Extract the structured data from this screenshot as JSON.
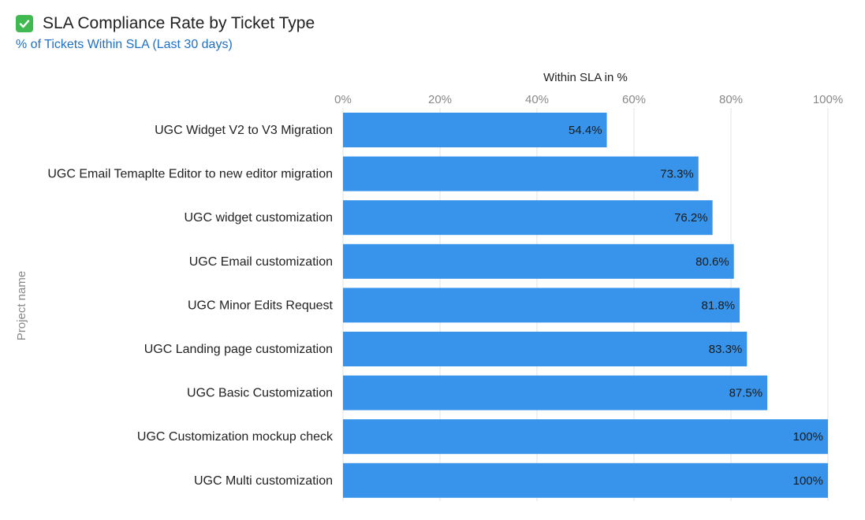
{
  "header": {
    "icon": "check-mark-icon",
    "title": "SLA Compliance Rate by Ticket Type",
    "subtitle": "% of Tickets Within SLA (Last 30 days)"
  },
  "colors": {
    "bar": "#3794ea",
    "title": "#222222",
    "subtitle": "#1f6fc5",
    "icon": "#3fb950"
  },
  "chart_data": {
    "type": "bar",
    "orientation": "horizontal",
    "xlabel": "Within SLA in %",
    "ylabel": "Project name",
    "xlim": [
      0,
      100
    ],
    "xticks": [
      "0%",
      "20%",
      "40%",
      "60%",
      "80%",
      "100%"
    ],
    "xtick_values": [
      0,
      20,
      40,
      60,
      80,
      100
    ],
    "grid": true,
    "categories": [
      "UGC Widget V2 to V3 Migration",
      "UGC Email Temaplte Editor to new editor migration",
      "UGC widget customization",
      "UGC Email customization",
      "UGC Minor Edits Request",
      "UGC Landing page customization",
      "UGC Basic Customization",
      "UGC Customization mockup check",
      "UGC Multi customization"
    ],
    "values": [
      54.4,
      73.3,
      76.2,
      80.6,
      81.8,
      83.3,
      87.5,
      100,
      100
    ],
    "data_labels": [
      "54.4%",
      "73.3%",
      "76.2%",
      "80.6%",
      "81.8%",
      "83.3%",
      "87.5%",
      "100%",
      "100%"
    ]
  }
}
